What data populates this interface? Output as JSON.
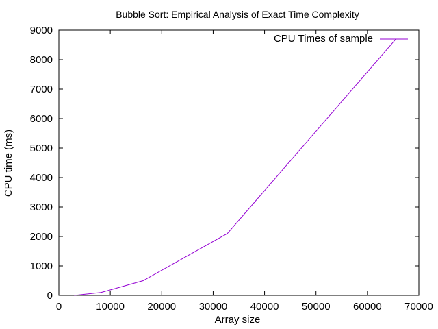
{
  "chart_data": {
    "type": "line",
    "title": "Bubble Sort: Empirical Analysis of Exact Time Complexity",
    "xlabel": "Array size",
    "ylabel": "CPU time (ms)",
    "xlim": [
      0,
      70000
    ],
    "ylim": [
      0,
      9000
    ],
    "x_ticks": [
      0,
      10000,
      20000,
      30000,
      40000,
      50000,
      60000,
      70000
    ],
    "y_ticks": [
      0,
      1000,
      2000,
      3000,
      4000,
      5000,
      6000,
      7000,
      8000,
      9000
    ],
    "grid": false,
    "legend_position": "top-right",
    "series": [
      {
        "name": "CPU Times of sample",
        "color": "#9400d3",
        "points": [
          {
            "x": 3000,
            "y": 0
          },
          {
            "x": 8192,
            "y": 100
          },
          {
            "x": 16384,
            "y": 500
          },
          {
            "x": 32768,
            "y": 2100
          },
          {
            "x": 65536,
            "y": 8700
          }
        ]
      }
    ]
  }
}
